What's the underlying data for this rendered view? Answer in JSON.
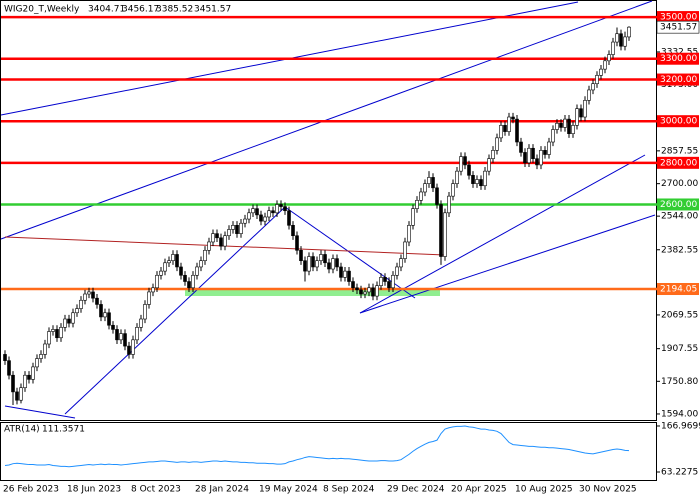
{
  "chart_data": [
    {
      "type": "candlestick",
      "title": "WIG20_T,Weekly",
      "categories": [
        "26 Feb 2023",
        null,
        null,
        null,
        null,
        null,
        null,
        null,
        null,
        null,
        null,
        null,
        null,
        null,
        null,
        null,
        "18 Jun 2023",
        null,
        null,
        null,
        null,
        null,
        null,
        null,
        null,
        null,
        null,
        null,
        null,
        null,
        null,
        null,
        "8 Oct 2023",
        null,
        null,
        null,
        null,
        null,
        null,
        null,
        null,
        null,
        null,
        null,
        null,
        null,
        null,
        null,
        "28 Jan 2024",
        null,
        null,
        null,
        null,
        null,
        null,
        null,
        null,
        null,
        null,
        null,
        null,
        null,
        null,
        null,
        "19 May 2024",
        null,
        null,
        null,
        null,
        null,
        null,
        null,
        null,
        null,
        null,
        null,
        null,
        null,
        null,
        null,
        "8 Sep 2024",
        null,
        null,
        null,
        null,
        null,
        null,
        null,
        null,
        null,
        null,
        null,
        null,
        null,
        null,
        null,
        "29 Dec 2024",
        null,
        null,
        null,
        null,
        null,
        null,
        null,
        null,
        null,
        null,
        null,
        null,
        null,
        null,
        null,
        "20 Apr 2025",
        null,
        null,
        null,
        null,
        null,
        null,
        null,
        null,
        null,
        null,
        null,
        null,
        null,
        null,
        null,
        "10 Aug 2025",
        null,
        null,
        null,
        null,
        null,
        null,
        null,
        null,
        null,
        null,
        null,
        null,
        null,
        null,
        null,
        "30 Nov 2025",
        null,
        null,
        null,
        null,
        null,
        null,
        null,
        null,
        null,
        null,
        null,
        null
      ],
      "open": [
        1880,
        1850,
        1780,
        1700,
        1660,
        1720,
        1780,
        1760,
        1820,
        1860,
        1880,
        1930,
        1990,
        2000,
        1960,
        2010,
        2050,
        2030,
        2080,
        2100,
        2140,
        2170,
        2180,
        2150,
        2120,
        2060,
        2080,
        2020,
        2000,
        1950,
        1980,
        1920,
        1880,
        1950,
        2010,
        2050,
        2120,
        2180,
        2200,
        2260,
        2280,
        2320,
        2330,
        2360,
        2300,
        2260,
        2230,
        2200,
        2260,
        2300,
        2330,
        2380,
        2420,
        2460,
        2440,
        2400,
        2450,
        2480,
        2500,
        2460,
        2510,
        2530,
        2560,
        2580,
        2550,
        2520,
        2540,
        2570,
        2560,
        2600,
        2590,
        2570,
        2500,
        2450,
        2380,
        2330,
        2280,
        2350,
        2300,
        2330,
        2360,
        2320,
        2290,
        2340,
        2300,
        2250,
        2280,
        2230,
        2200,
        2190,
        2170,
        2180,
        2200,
        2160,
        2210,
        2250,
        2230,
        2200,
        2260,
        2300,
        2340,
        2420,
        2500,
        2580,
        2620,
        2660,
        2700,
        2730,
        2680,
        2600,
        2350,
        2560,
        2640,
        2700,
        2760,
        2830,
        2790,
        2740,
        2700,
        2720,
        2690,
        2760,
        2820,
        2860,
        2920,
        2980,
        2950,
        3020,
        3010,
        2900,
        2850,
        2800,
        2870,
        2820,
        2790,
        2860,
        2840,
        2900,
        2960,
        2990,
        2970,
        3010,
        2940,
        2980,
        3060,
        3020,
        3100,
        3150,
        3180,
        3220,
        3250,
        3290,
        3320,
        3380,
        3420,
        3360,
        3404.71
      ],
      "high": [
        1900,
        1870,
        1800,
        1720,
        1740,
        1800,
        1800,
        1840,
        1880,
        1900,
        1950,
        2010,
        2020,
        2020,
        2030,
        2070,
        2070,
        2100,
        2120,
        2160,
        2190,
        2200,
        2200,
        2170,
        2140,
        2100,
        2100,
        2040,
        2020,
        2000,
        2000,
        1940,
        1970,
        2030,
        2070,
        2140,
        2200,
        2220,
        2280,
        2300,
        2340,
        2350,
        2380,
        2380,
        2320,
        2280,
        2250,
        2280,
        2320,
        2350,
        2400,
        2440,
        2480,
        2480,
        2460,
        2470,
        2500,
        2520,
        2520,
        2530,
        2550,
        2580,
        2600,
        2600,
        2570,
        2560,
        2590,
        2590,
        2620,
        2620,
        2610,
        2590,
        2520,
        2470,
        2400,
        2350,
        2370,
        2370,
        2350,
        2380,
        2380,
        2340,
        2360,
        2360,
        2320,
        2300,
        2300,
        2250,
        2220,
        2210,
        2200,
        2220,
        2220,
        2230,
        2270,
        2270,
        2250,
        2280,
        2320,
        2360,
        2440,
        2520,
        2600,
        2640,
        2680,
        2720,
        2760,
        2750,
        2700,
        2620,
        2580,
        2660,
        2720,
        2780,
        2850,
        2850,
        2810,
        2760,
        2740,
        2740,
        2780,
        2840,
        2880,
        2940,
        3000,
        3000,
        3040,
        3040,
        3030,
        2920,
        2870,
        2890,
        2890,
        2840,
        2880,
        2880,
        2920,
        2980,
        3010,
        3010,
        3030,
        3030,
        3000,
        3080,
        3080,
        3120,
        3170,
        3200,
        3240,
        3270,
        3310,
        3340,
        3400,
        3450,
        3440,
        3430,
        3456.17
      ],
      "low": [
        1830,
        1760,
        1637,
        1640,
        1645,
        1700,
        1740,
        1740,
        1800,
        1840,
        1860,
        1910,
        1970,
        1940,
        1940,
        1990,
        2010,
        2010,
        2060,
        2080,
        2120,
        2150,
        2130,
        2100,
        2040,
        2040,
        2000,
        1980,
        1930,
        1930,
        1900,
        1860,
        1860,
        1930,
        1990,
        2030,
        2100,
        2160,
        2180,
        2240,
        2260,
        2300,
        2310,
        2280,
        2240,
        2210,
        2180,
        2180,
        2240,
        2280,
        2310,
        2360,
        2400,
        2420,
        2380,
        2380,
        2430,
        2460,
        2440,
        2440,
        2490,
        2510,
        2540,
        2530,
        2500,
        2500,
        2520,
        2540,
        2540,
        2570,
        2550,
        2480,
        2430,
        2360,
        2310,
        2230,
        2260,
        2280,
        2280,
        2310,
        2300,
        2270,
        2270,
        2280,
        2230,
        2230,
        2210,
        2180,
        2170,
        2150,
        2150,
        2160,
        2140,
        2140,
        2190,
        2210,
        2180,
        2180,
        2240,
        2280,
        2320,
        2400,
        2480,
        2560,
        2600,
        2640,
        2680,
        2660,
        2580,
        2310,
        2330,
        2540,
        2620,
        2680,
        2740,
        2770,
        2720,
        2680,
        2680,
        2670,
        2670,
        2740,
        2800,
        2840,
        2900,
        2930,
        2930,
        2990,
        2880,
        2830,
        2780,
        2780,
        2800,
        2770,
        2770,
        2820,
        2820,
        2880,
        2940,
        2950,
        2950,
        2920,
        2920,
        2960,
        3000,
        3000,
        3080,
        3130,
        3160,
        3200,
        3230,
        3270,
        3300,
        3360,
        3340,
        3340,
        3385.52
      ],
      "close": [
        1850,
        1780,
        1700,
        1660,
        1720,
        1780,
        1760,
        1820,
        1860,
        1880,
        1930,
        1990,
        2000,
        1960,
        2010,
        2050,
        2030,
        2080,
        2100,
        2140,
        2170,
        2180,
        2150,
        2120,
        2060,
        2080,
        2020,
        2000,
        1950,
        1980,
        1920,
        1880,
        1950,
        2010,
        2050,
        2120,
        2180,
        2200,
        2260,
        2280,
        2320,
        2330,
        2360,
        2300,
        2260,
        2230,
        2200,
        2260,
        2300,
        2330,
        2380,
        2420,
        2460,
        2440,
        2400,
        2450,
        2480,
        2500,
        2460,
        2510,
        2530,
        2560,
        2580,
        2550,
        2520,
        2540,
        2570,
        2560,
        2600,
        2590,
        2570,
        2500,
        2450,
        2380,
        2330,
        2280,
        2350,
        2300,
        2330,
        2360,
        2320,
        2290,
        2340,
        2300,
        2250,
        2280,
        2230,
        2200,
        2190,
        2170,
        2180,
        2200,
        2160,
        2210,
        2250,
        2230,
        2200,
        2260,
        2300,
        2340,
        2420,
        2500,
        2580,
        2620,
        2660,
        2700,
        2730,
        2680,
        2600,
        2350,
        2560,
        2640,
        2700,
        2760,
        2830,
        2790,
        2740,
        2700,
        2720,
        2690,
        2760,
        2820,
        2860,
        2920,
        2980,
        2950,
        3020,
        3010,
        2900,
        2850,
        2800,
        2870,
        2820,
        2790,
        2860,
        2840,
        2900,
        2960,
        2990,
        2970,
        3010,
        2940,
        2980,
        3060,
        3020,
        3100,
        3150,
        3180,
        3220,
        3250,
        3290,
        3320,
        3380,
        3420,
        3360,
        3404.71,
        3451.57
      ],
      "ylim": [
        1565,
        3582
      ],
      "yticks": [
        {
          "value": 3332.55,
          "label": "3332.55"
        },
        {
          "value": 3175,
          "label": "3175.00"
        },
        {
          "value": 2857.55,
          "label": "2857.55"
        },
        {
          "value": 2700,
          "label": "2700.00"
        },
        {
          "value": 2544,
          "label": "2544.00"
        },
        {
          "value": 2382.55,
          "label": "2382.55"
        },
        {
          "value": 2069.55,
          "label": "2069.55"
        },
        {
          "value": 1907.55,
          "label": "1907.55"
        },
        {
          "value": 1750.8,
          "label": "1750.80"
        },
        {
          "value": 1594,
          "label": "1594.00"
        }
      ],
      "levels": [
        {
          "value": 3500,
          "label": "3500.00",
          "color": "#ff0000"
        },
        {
          "value": 3300,
          "label": "3300.00",
          "color": "#ff0000"
        },
        {
          "value": 3200,
          "label": "3200.00",
          "color": "#ff0000"
        },
        {
          "value": 3000,
          "label": "3000.00",
          "color": "#ff0000"
        },
        {
          "value": 2800,
          "label": "2800.00",
          "color": "#ff0000"
        },
        {
          "value": 2600,
          "label": "2600.00",
          "color": "#32cd32"
        },
        {
          "value": 2194.05,
          "label": "2194.05",
          "color": "#ff6a1a"
        }
      ]
    },
    {
      "type": "line",
      "series": [
        {
          "name": "ATR(14)",
          "color": "#1e90ff",
          "values": [
            78,
            79,
            82,
            83,
            82,
            81,
            80,
            80,
            79,
            79,
            79,
            80,
            78,
            77,
            76,
            76,
            75,
            76,
            77,
            78,
            79,
            80,
            79,
            80,
            81,
            80,
            81,
            80,
            80,
            79,
            80,
            81,
            82,
            83,
            84,
            85,
            86,
            86,
            87,
            88,
            88,
            87,
            86,
            85,
            86,
            86,
            85,
            86,
            86,
            85,
            86,
            87,
            88,
            88,
            87,
            88,
            87,
            86,
            86,
            85,
            85,
            84,
            84,
            83,
            83,
            83,
            82,
            82,
            81,
            81,
            82,
            86,
            88,
            91,
            93,
            96,
            98,
            97,
            96,
            95,
            94,
            93,
            94,
            93,
            94,
            93,
            93,
            92,
            91,
            90,
            89,
            88,
            88,
            88,
            89,
            89,
            88,
            88,
            89,
            91,
            97,
            103,
            110,
            116,
            121,
            126,
            130,
            132,
            135,
            150,
            160,
            163,
            165,
            166,
            166,
            167,
            165,
            164,
            162,
            160,
            160,
            158,
            157,
            155,
            150,
            140,
            130,
            125,
            124,
            123,
            122,
            121,
            121,
            120,
            119,
            119,
            118,
            118,
            117,
            116,
            115,
            114,
            112,
            110,
            108,
            106,
            105,
            104,
            106,
            108,
            110,
            112,
            114,
            115,
            114,
            112,
            111.3571
          ]
        }
      ],
      "ylim": [
        45.2,
        178.2
      ],
      "yticks": [
        166.9699,
        63.2275
      ]
    }
  ]
}
